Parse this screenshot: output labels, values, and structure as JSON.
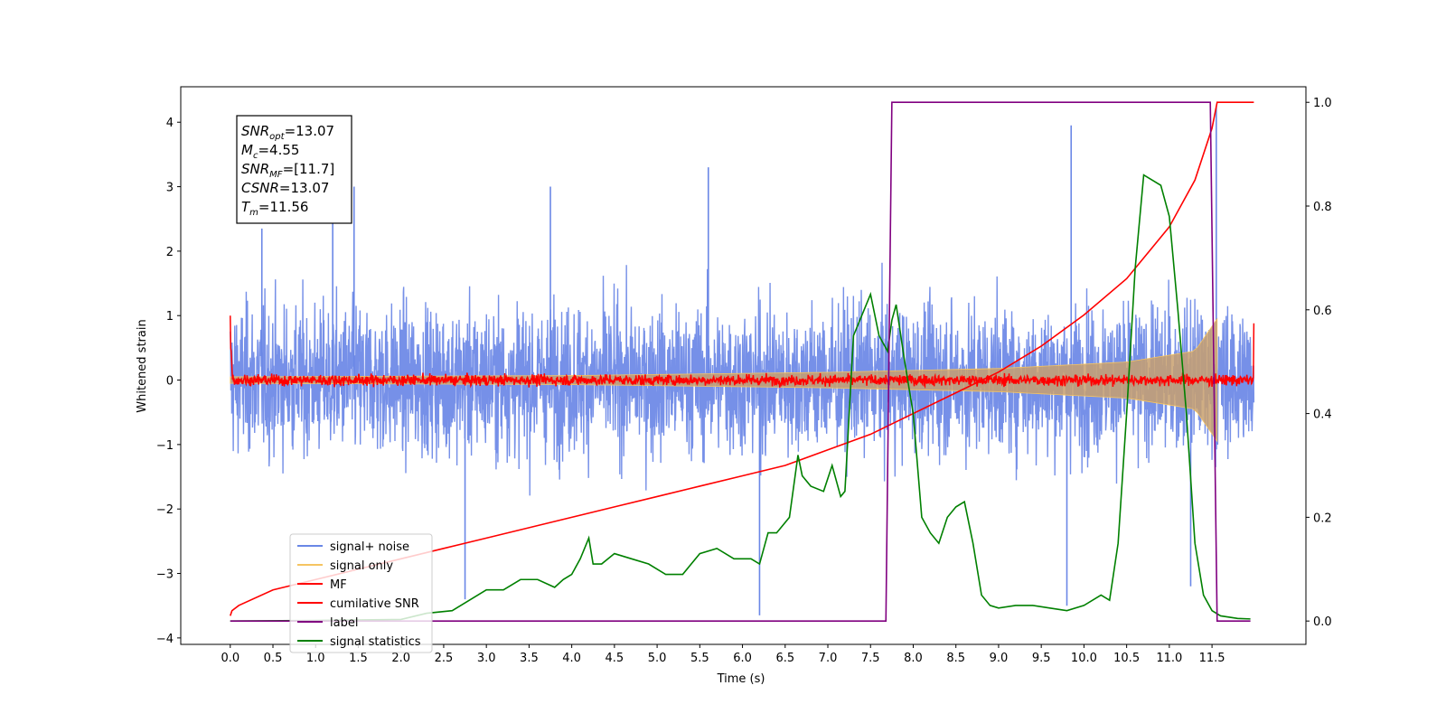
{
  "chart_data": {
    "type": "line",
    "xlabel": "Time (s)",
    "ylabel": "Whitened strain",
    "xlim": [
      -0.58,
      12.6
    ],
    "ylim": [
      -4.1,
      4.55
    ],
    "y2lim": [
      -0.045,
      1.03
    ],
    "x_ticks": [
      0.0,
      0.5,
      1.0,
      1.5,
      2.0,
      2.5,
      3.0,
      3.5,
      4.0,
      4.5,
      5.0,
      5.5,
      6.0,
      6.5,
      7.0,
      7.5,
      8.0,
      8.5,
      9.0,
      9.5,
      10.0,
      10.5,
      11.0,
      11.5
    ],
    "x_tick_labels": [
      "0.0",
      "0.5",
      "1.0",
      "1.5",
      "2.0",
      "2.5",
      "3.0",
      "3.5",
      "4.0",
      "4.5",
      "5.0",
      "5.5",
      "6.0",
      "6.5",
      "7.0",
      "7.5",
      "8.0",
      "8.5",
      "9.0",
      "9.5",
      "10.0",
      "10.5",
      "11.0",
      "11.5"
    ],
    "y_ticks": [
      4,
      3,
      2,
      1,
      0,
      -1,
      -2,
      -3,
      -4
    ],
    "y_tick_labels": [
      "4",
      "3",
      "2",
      "1",
      "0",
      "−1",
      "−2",
      "−3",
      "−4"
    ],
    "y2_ticks": [
      1.0,
      0.8,
      0.6,
      0.4,
      0.2,
      0.0
    ],
    "y2_tick_labels": [
      "1.0",
      "0.8",
      "0.6",
      "0.4",
      "0.2",
      "0.0"
    ],
    "grid": false,
    "legend_position": "lower-left",
    "annotation_box": {
      "lines": [
        {
          "main": "SNR",
          "sub": "opt",
          "value": "=13.07"
        },
        {
          "main": "M",
          "sub": "c",
          "value": "=4.55"
        },
        {
          "main": "SNR",
          "sub": "MF",
          "value": "=[11.7]"
        },
        {
          "main": "CSNR",
          "sub": "",
          "value": "=13.07"
        },
        {
          "main": "T",
          "sub": "m",
          "value": "=11.56"
        }
      ]
    },
    "series": [
      {
        "name": "signal+ noise",
        "color": "#6a87e6",
        "axis": "left",
        "style": "dense-noise",
        "t_range": [
          0.0,
          11.99
        ],
        "center": 0.0,
        "typical_band": [
          -1.9,
          2.1
        ],
        "outliers": [
          [
            0.37,
            2.35
          ],
          [
            1.2,
            3.05
          ],
          [
            1.45,
            3.0
          ],
          [
            3.75,
            3.0
          ],
          [
            5.6,
            3.3
          ],
          [
            6.2,
            -3.65
          ],
          [
            9.8,
            -3.5
          ],
          [
            9.85,
            3.95
          ],
          [
            11.25,
            -3.2
          ],
          [
            11.55,
            4.25
          ],
          [
            2.75,
            -3.4
          ]
        ]
      },
      {
        "name": "signal only",
        "color": "#f5c462",
        "axis": "left",
        "style": "chirp-envelope",
        "envelope": {
          "x": [
            0.0,
            4.0,
            7.0,
            9.0,
            10.5,
            11.3,
            11.56
          ],
          "amp": [
            0.05,
            0.07,
            0.12,
            0.18,
            0.28,
            0.45,
            0.95
          ]
        }
      },
      {
        "name": "MF",
        "color": "#ff0000",
        "axis": "left",
        "style": "noise",
        "t_range": [
          0.0,
          11.99
        ],
        "center": 0.0,
        "typical_band": [
          -0.18,
          0.18
        ],
        "end_values": {
          "start": 1.0,
          "end": 0.88
        }
      },
      {
        "name": "cumilative SNR",
        "color": "#ff0000",
        "axis": "right",
        "x": [
          0.0,
          0.02,
          0.1,
          0.5,
          1.0,
          1.5,
          2.0,
          2.5,
          3.0,
          3.5,
          4.0,
          4.5,
          5.0,
          5.5,
          6.0,
          6.5,
          7.0,
          7.5,
          8.0,
          8.5,
          9.0,
          9.5,
          10.0,
          10.5,
          11.0,
          11.3,
          11.5,
          11.56,
          11.99
        ],
        "values": [
          0.01,
          0.02,
          0.03,
          0.06,
          0.08,
          0.1,
          0.12,
          0.14,
          0.16,
          0.18,
          0.2,
          0.22,
          0.24,
          0.26,
          0.28,
          0.3,
          0.33,
          0.36,
          0.4,
          0.44,
          0.48,
          0.53,
          0.59,
          0.66,
          0.76,
          0.85,
          0.95,
          1.0,
          1.0
        ]
      },
      {
        "name": "label",
        "color": "#800080",
        "axis": "right",
        "x": [
          0.0,
          7.68,
          7.75,
          11.48,
          11.56,
          11.95
        ],
        "values": [
          0.0,
          0.0,
          1.0,
          1.0,
          0.0,
          0.0
        ]
      },
      {
        "name": "signal statistics",
        "color": "#008000",
        "axis": "right",
        "x": [
          0.0,
          1.0,
          2.0,
          2.3,
          2.6,
          2.8,
          3.0,
          3.2,
          3.4,
          3.6,
          3.8,
          3.9,
          4.0,
          4.1,
          4.2,
          4.25,
          4.35,
          4.5,
          4.7,
          4.9,
          5.1,
          5.3,
          5.5,
          5.7,
          5.9,
          6.1,
          6.2,
          6.3,
          6.4,
          6.55,
          6.65,
          6.7,
          6.8,
          6.95,
          7.05,
          7.15,
          7.2,
          7.3,
          7.4,
          7.5,
          7.6,
          7.7,
          7.75,
          7.8,
          7.9,
          8.0,
          8.1,
          8.2,
          8.3,
          8.4,
          8.5,
          8.6,
          8.7,
          8.8,
          8.9,
          9.0,
          9.2,
          9.4,
          9.6,
          9.8,
          10.0,
          10.2,
          10.3,
          10.4,
          10.5,
          10.6,
          10.7,
          10.8,
          10.9,
          11.0,
          11.1,
          11.2,
          11.3,
          11.4,
          11.5,
          11.6,
          11.8,
          11.95
        ],
        "values": [
          0.0,
          0.001,
          0.003,
          0.015,
          0.02,
          0.04,
          0.06,
          0.06,
          0.08,
          0.08,
          0.065,
          0.08,
          0.09,
          0.12,
          0.16,
          0.11,
          0.11,
          0.13,
          0.12,
          0.11,
          0.09,
          0.09,
          0.13,
          0.14,
          0.12,
          0.12,
          0.11,
          0.17,
          0.17,
          0.2,
          0.32,
          0.28,
          0.26,
          0.25,
          0.3,
          0.24,
          0.25,
          0.55,
          0.59,
          0.63,
          0.55,
          0.52,
          0.58,
          0.61,
          0.5,
          0.4,
          0.2,
          0.17,
          0.15,
          0.2,
          0.22,
          0.23,
          0.15,
          0.05,
          0.03,
          0.025,
          0.03,
          0.03,
          0.025,
          0.02,
          0.03,
          0.05,
          0.04,
          0.15,
          0.4,
          0.68,
          0.86,
          0.85,
          0.84,
          0.78,
          0.6,
          0.4,
          0.15,
          0.05,
          0.02,
          0.01,
          0.005,
          0.004
        ]
      }
    ]
  }
}
